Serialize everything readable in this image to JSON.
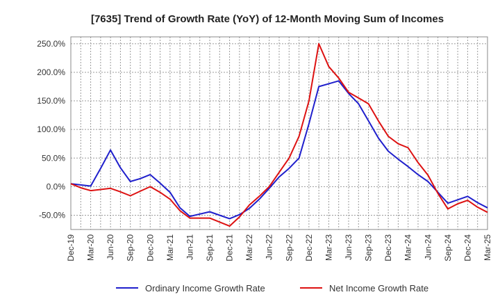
{
  "chart_data": {
    "type": "line",
    "title": "[7635]  Trend of Growth Rate (YoY) of 12-Month Moving Sum of Incomes",
    "xlabel": "",
    "ylabel": "",
    "ylim": [
      -75,
      262
    ],
    "y_ticks": [
      250,
      200,
      150,
      100,
      50,
      0,
      -50
    ],
    "y_tick_labels": [
      "250.0%",
      "200.0%",
      "150.0%",
      "100.0%",
      "50.0%",
      "0.0%",
      "-50.0%"
    ],
    "x_tick_labels": [
      "Dec-19",
      "Mar-20",
      "Jun-20",
      "Sep-20",
      "Dec-20",
      "Mar-21",
      "Jun-21",
      "Sep-21",
      "Dec-21",
      "Mar-22",
      "Jun-22",
      "Sep-22",
      "Dec-22",
      "Mar-23",
      "Jun-23",
      "Sep-23",
      "Dec-23",
      "Mar-24",
      "Jun-24",
      "Sep-24",
      "Dec-24",
      "Mar-25"
    ],
    "grid": true,
    "legend_position": "bottom",
    "series": [
      {
        "name": "Ordinary Income Growth Rate",
        "color": "#1f1fcc",
        "values": [
          5,
          3,
          1,
          32,
          64,
          33,
          9,
          14,
          21,
          6,
          -10,
          -37,
          -52,
          -48,
          -44,
          -50,
          -56,
          -49,
          -38,
          -22,
          -3,
          17,
          32,
          50,
          110,
          175,
          180,
          185,
          163,
          145,
          115,
          85,
          62,
          48,
          35,
          21,
          9,
          -10,
          -29,
          -23,
          -17,
          -28,
          -37
        ]
      },
      {
        "name": "Net Income Growth Rate",
        "color": "#dd1111",
        "values": [
          5,
          -2,
          -7,
          -5,
          -3,
          -9,
          -16,
          -8,
          0,
          -10,
          -22,
          -42,
          -55,
          -55,
          -55,
          -62,
          -69,
          -53,
          -32,
          -17,
          0,
          25,
          50,
          88,
          150,
          250,
          210,
          190,
          165,
          155,
          145,
          115,
          88,
          75,
          68,
          42,
          20,
          -12,
          -39,
          -30,
          -24,
          -36,
          -45
        ]
      }
    ]
  }
}
